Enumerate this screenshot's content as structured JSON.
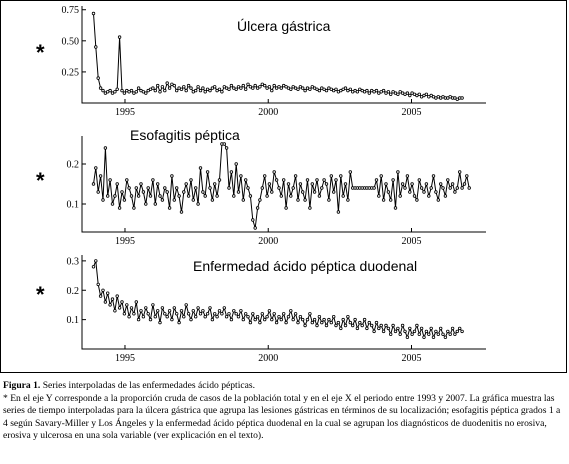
{
  "chart_data": [
    {
      "type": "line",
      "title": "Úlcera gástrica",
      "ylabel": "*",
      "xlim": [
        1993.5,
        2007.6
      ],
      "ylim": [
        0,
        0.78
      ],
      "x_ticks": [
        1995,
        2000,
        2005
      ],
      "y_ticks": [
        0.25,
        0.5,
        0.75
      ],
      "y_tick_labels": [
        "0.25",
        "0.50",
        "0.75"
      ],
      "series": [
        {
          "x_start": 1993.9,
          "x_step": 0.083,
          "values": [
            0.72,
            0.45,
            0.2,
            0.12,
            0.1,
            0.08,
            0.09,
            0.1,
            0.08,
            0.09,
            0.11,
            0.53,
            0.1,
            0.08,
            0.1,
            0.09,
            0.1,
            0.08,
            0.09,
            0.12,
            0.1,
            0.09,
            0.08,
            0.1,
            0.11,
            0.12,
            0.1,
            0.14,
            0.09,
            0.13,
            0.1,
            0.16,
            0.12,
            0.15,
            0.14,
            0.1,
            0.12,
            0.11,
            0.13,
            0.1,
            0.14,
            0.12,
            0.09,
            0.1,
            0.13,
            0.1,
            0.12,
            0.09,
            0.11,
            0.1,
            0.12,
            0.13,
            0.1,
            0.11,
            0.09,
            0.13,
            0.12,
            0.11,
            0.14,
            0.12,
            0.11,
            0.13,
            0.12,
            0.14,
            0.11,
            0.15,
            0.13,
            0.12,
            0.14,
            0.12,
            0.13,
            0.15,
            0.14,
            0.12,
            0.13,
            0.1,
            0.14,
            0.12,
            0.13,
            0.12,
            0.14,
            0.13,
            0.12,
            0.11,
            0.13,
            0.12,
            0.11,
            0.13,
            0.12,
            0.1,
            0.12,
            0.11,
            0.13,
            0.12,
            0.11,
            0.1,
            0.12,
            0.11,
            0.1,
            0.12,
            0.11,
            0.1,
            0.11,
            0.09,
            0.1,
            0.11,
            0.12,
            0.1,
            0.11,
            0.09,
            0.1,
            0.09,
            0.11,
            0.1,
            0.09,
            0.1,
            0.08,
            0.1,
            0.09,
            0.1,
            0.08,
            0.09,
            0.1,
            0.08,
            0.09,
            0.07,
            0.09,
            0.08,
            0.07,
            0.09,
            0.08,
            0.07,
            0.08,
            0.06,
            0.08,
            0.07,
            0.06,
            0.07,
            0.05,
            0.06,
            0.07,
            0.05,
            0.06,
            0.05,
            0.04,
            0.05,
            0.04,
            0.05,
            0.04,
            0.04,
            0.05,
            0.04,
            0.04,
            0.03,
            0.04,
            0.04
          ]
        }
      ]
    },
    {
      "type": "line",
      "title": "Esofagitis péptica",
      "ylabel": "*",
      "xlim": [
        1993.5,
        2007.6
      ],
      "ylim": [
        0.03,
        0.27
      ],
      "x_ticks": [
        1995,
        2000,
        2005
      ],
      "y_ticks": [
        0.1,
        0.2
      ],
      "y_tick_labels": [
        "0.1",
        "0.2"
      ],
      "series": [
        {
          "x_start": 1993.9,
          "x_step": 0.083,
          "values": [
            0.15,
            0.19,
            0.13,
            0.17,
            0.11,
            0.24,
            0.12,
            0.16,
            0.1,
            0.12,
            0.15,
            0.09,
            0.13,
            0.11,
            0.16,
            0.14,
            0.12,
            0.09,
            0.14,
            0.12,
            0.15,
            0.13,
            0.1,
            0.14,
            0.12,
            0.16,
            0.1,
            0.15,
            0.12,
            0.11,
            0.14,
            0.13,
            0.09,
            0.17,
            0.11,
            0.14,
            0.12,
            0.08,
            0.13,
            0.15,
            0.12,
            0.16,
            0.11,
            0.14,
            0.1,
            0.19,
            0.13,
            0.12,
            0.18,
            0.14,
            0.11,
            0.15,
            0.12,
            0.16,
            0.25,
            0.25,
            0.24,
            0.14,
            0.18,
            0.12,
            0.2,
            0.13,
            0.17,
            0.11,
            0.16,
            0.14,
            0.12,
            0.06,
            0.04,
            0.09,
            0.11,
            0.14,
            0.17,
            0.12,
            0.15,
            0.13,
            0.18,
            0.16,
            0.14,
            0.12,
            0.16,
            0.09,
            0.15,
            0.12,
            0.14,
            0.17,
            0.11,
            0.15,
            0.13,
            0.11,
            0.16,
            0.09,
            0.15,
            0.13,
            0.16,
            0.12,
            0.14,
            0.16,
            0.15,
            0.11,
            0.17,
            0.13,
            0.16,
            0.08,
            0.17,
            0.12,
            0.15,
            0.11,
            0.18,
            0.14,
            0.14,
            0.14,
            0.14,
            0.14,
            0.14,
            0.14,
            0.14,
            0.14,
            0.14,
            0.16,
            0.12,
            0.17,
            0.11,
            0.15,
            0.13,
            0.11,
            0.16,
            0.09,
            0.18,
            0.12,
            0.15,
            0.14,
            0.17,
            0.13,
            0.15,
            0.12,
            0.11,
            0.16,
            0.14,
            0.13,
            0.15,
            0.12,
            0.14,
            0.17,
            0.13,
            0.11,
            0.15,
            0.14,
            0.12,
            0.16,
            0.14,
            0.15,
            0.13,
            0.14,
            0.18,
            0.14,
            0.15,
            0.17,
            0.14
          ]
        }
      ]
    },
    {
      "type": "line",
      "title": "Enfermedad ácido péptica duodenal",
      "ylabel": "*",
      "xlim": [
        1993.5,
        2007.6
      ],
      "ylim": [
        0.0,
        0.32
      ],
      "x_ticks": [
        1995,
        2000,
        2005
      ],
      "y_ticks": [
        0.1,
        0.2,
        0.3
      ],
      "y_tick_labels": [
        "0.1",
        "0.2",
        "0.3"
      ],
      "series": [
        {
          "x_start": 1993.9,
          "x_step": 0.083,
          "values": [
            0.28,
            0.3,
            0.22,
            0.18,
            0.2,
            0.16,
            0.19,
            0.15,
            0.17,
            0.13,
            0.18,
            0.14,
            0.16,
            0.12,
            0.15,
            0.11,
            0.14,
            0.12,
            0.16,
            0.1,
            0.13,
            0.11,
            0.14,
            0.12,
            0.1,
            0.15,
            0.11,
            0.13,
            0.09,
            0.14,
            0.12,
            0.11,
            0.13,
            0.1,
            0.14,
            0.12,
            0.09,
            0.13,
            0.11,
            0.15,
            0.12,
            0.1,
            0.13,
            0.11,
            0.14,
            0.12,
            0.13,
            0.11,
            0.12,
            0.14,
            0.1,
            0.12,
            0.11,
            0.13,
            0.12,
            0.14,
            0.11,
            0.12,
            0.1,
            0.13,
            0.12,
            0.11,
            0.13,
            0.1,
            0.12,
            0.11,
            0.09,
            0.12,
            0.1,
            0.11,
            0.09,
            0.12,
            0.1,
            0.11,
            0.13,
            0.1,
            0.12,
            0.09,
            0.11,
            0.1,
            0.12,
            0.09,
            0.11,
            0.13,
            0.1,
            0.12,
            0.09,
            0.11,
            0.1,
            0.08,
            0.1,
            0.12,
            0.09,
            0.1,
            0.08,
            0.11,
            0.09,
            0.1,
            0.08,
            0.1,
            0.09,
            0.11,
            0.08,
            0.09,
            0.07,
            0.1,
            0.08,
            0.11,
            0.09,
            0.08,
            0.1,
            0.07,
            0.09,
            0.08,
            0.1,
            0.07,
            0.09,
            0.08,
            0.06,
            0.09,
            0.07,
            0.08,
            0.06,
            0.08,
            0.07,
            0.05,
            0.08,
            0.06,
            0.07,
            0.05,
            0.08,
            0.06,
            0.04,
            0.07,
            0.05,
            0.06,
            0.08,
            0.05,
            0.07,
            0.04,
            0.06,
            0.05,
            0.07,
            0.04,
            0.06,
            0.05,
            0.07,
            0.05,
            0.04,
            0.06,
            0.05,
            0.07,
            0.05,
            0.06,
            0.07,
            0.06
          ]
        }
      ]
    }
  ],
  "caption": {
    "title": "Figura 1.",
    "title_rest": " Series interpoladas de las enfermedades ácido pépticas.",
    "note": "* En el eje Y corresponde a la proporción cruda de casos de la población total y en el eje X el periodo entre 1993 y 2007. La gráfica muestra las series de tiempo interpoladas para la úlcera gástrica que agrupa las lesiones gástricas en términos de su localización; esofagitis péptica grados 1 a 4 según Savary-Miller y Los Ángeles y la enfermedad ácido péptica duodenal en la cual se agrupan los diagnósticos de duodenitis no erosiva, erosiva y ulcerosa en una sola variable (ver explicación en el texto)."
  }
}
